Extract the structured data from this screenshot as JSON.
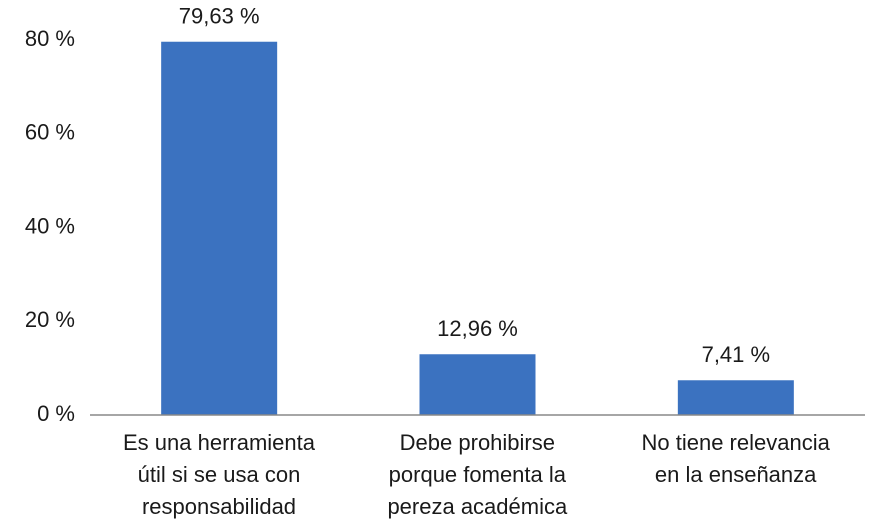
{
  "chart_data": {
    "type": "bar",
    "categories": [
      "Es una herramienta\nútil si se usa con\nresponsabilidad",
      "Debe prohibirse\nporque fomenta la\npereza académica",
      "No tiene relevancia\nen la enseñanza"
    ],
    "values": [
      79.63,
      12.96,
      7.41
    ],
    "value_labels": [
      "79,63 %",
      "12,96 %",
      "7,41 %"
    ],
    "color": "#3b72c0",
    "ylim": [
      0,
      80
    ],
    "yticks": [
      {
        "value": 0,
        "label": "0 %"
      },
      {
        "value": 20,
        "label": "20 %"
      },
      {
        "value": 40,
        "label": "40 %"
      },
      {
        "value": 60,
        "label": "60 %"
      },
      {
        "value": 80,
        "label": "80 %"
      }
    ],
    "grid": false
  }
}
